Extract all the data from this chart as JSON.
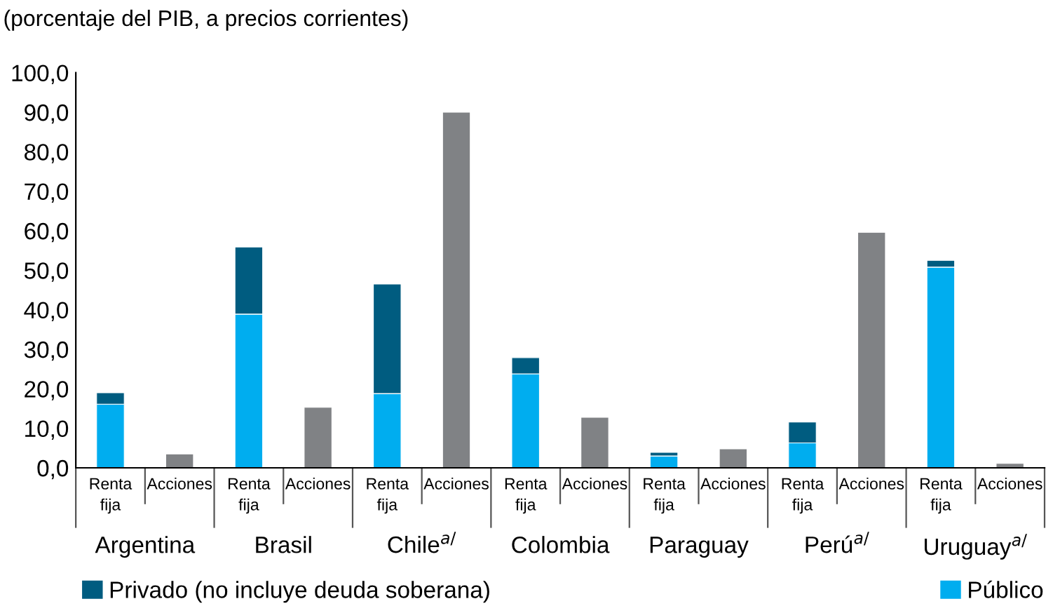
{
  "chart_data": {
    "type": "bar",
    "stacked": true,
    "title": "(porcentaje del PIB, a precios corrientes)",
    "categories": [
      "Renta fija",
      "Acciones",
      "Renta fija",
      "Acciones",
      "Renta fija",
      "Acciones",
      "Renta fija",
      "Acciones",
      "Renta fija",
      "Acciones",
      "Renta fija",
      "Acciones",
      "Renta fija",
      "Acciones"
    ],
    "annotations": [
      "Argentina",
      "Brasil",
      "Chile$^{a/}$",
      "Colombia",
      "Paraguay",
      "Perú$^{a/}$",
      "Uruguay$^{a/}$"
    ],
    "series": [
      {
        "name": "Público",
        "color": "#00adef",
        "values": [
          16.1,
          null,
          38.9,
          null,
          18.8,
          null,
          23.8,
          null,
          3.0,
          null,
          6.3,
          null,
          50.8,
          null
        ]
      },
      {
        "name": "Privado (no incluye deuda soberana)",
        "color": "#005c80",
        "values": [
          2.9,
          null,
          17.0,
          null,
          27.7,
          null,
          4.1,
          null,
          0.9,
          null,
          5.3,
          null,
          1.7,
          null
        ]
      },
      {
        "color": "#808285",
        "values": [
          null,
          3.5,
          null,
          15.3,
          null,
          90.0,
          null,
          12.8,
          null,
          4.8,
          null,
          59.6,
          null,
          1.1
        ]
      }
    ],
    "ylim": [
      0,
      100
    ],
    "yticks": [
      {
        "value": 0,
        "label": "0,0"
      },
      {
        "value": 10,
        "label": "10,0"
      },
      {
        "value": 20,
        "label": "20,0"
      },
      {
        "value": 30,
        "label": "30,0"
      },
      {
        "value": 40,
        "label": "40,0"
      },
      {
        "value": 50,
        "label": "50,0"
      },
      {
        "value": 60,
        "label": "60,0"
      },
      {
        "value": 70,
        "label": "70,0"
      },
      {
        "value": 80,
        "label": "80,0"
      },
      {
        "value": 90,
        "label": "90,0"
      },
      {
        "value": 100,
        "label": "100,0"
      }
    ],
    "grid": false,
    "legend": "bottom"
  }
}
